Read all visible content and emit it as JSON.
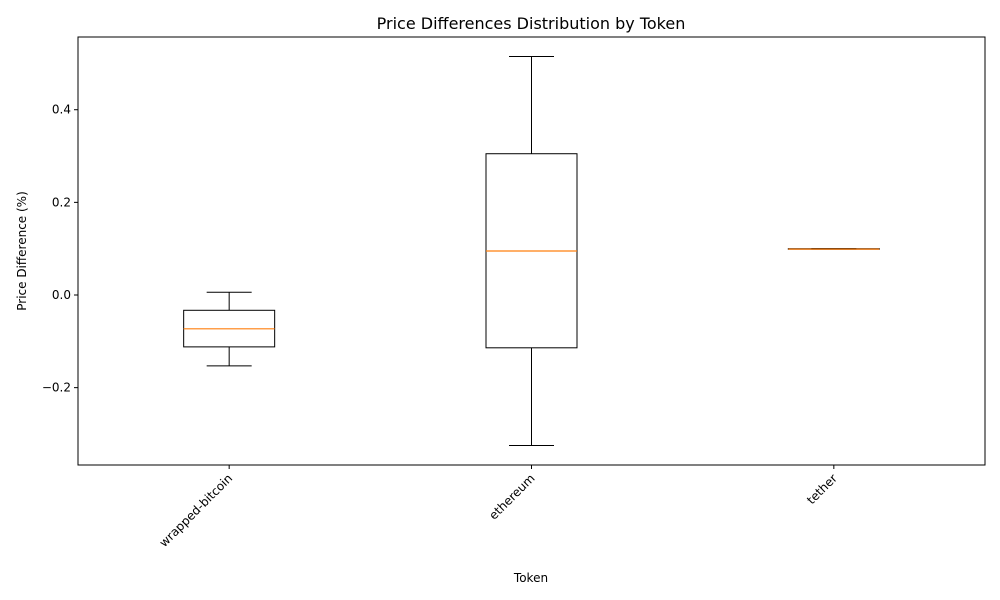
{
  "chart_data": {
    "type": "box",
    "title": "Price Differences Distribution by Token",
    "xlabel": "Token",
    "ylabel": "Price Difference (%)",
    "categories": [
      "wrapped-bitcoin",
      "ethereum",
      "tether"
    ],
    "boxes": [
      {
        "whisker_low": -0.153,
        "q1": -0.112,
        "median": -0.073,
        "q3": -0.033,
        "whisker_high": 0.006
      },
      {
        "whisker_low": -0.325,
        "q1": -0.114,
        "median": 0.095,
        "q3": 0.305,
        "whisker_high": 0.515
      },
      {
        "whisker_low": 0.099,
        "q1": 0.099,
        "median": 0.099,
        "q3": 0.1,
        "whisker_high": 0.1
      }
    ],
    "ylim": [
      -0.367,
      0.557
    ],
    "yticks": [
      -0.2,
      0.0,
      0.2,
      0.4
    ],
    "ytick_labels": [
      "−0.2",
      "0.0",
      "0.2",
      "0.4"
    ],
    "xtick_rotation": 45,
    "grid": false,
    "colors": {
      "box": "#000000",
      "median": "#ff7f0e"
    }
  }
}
